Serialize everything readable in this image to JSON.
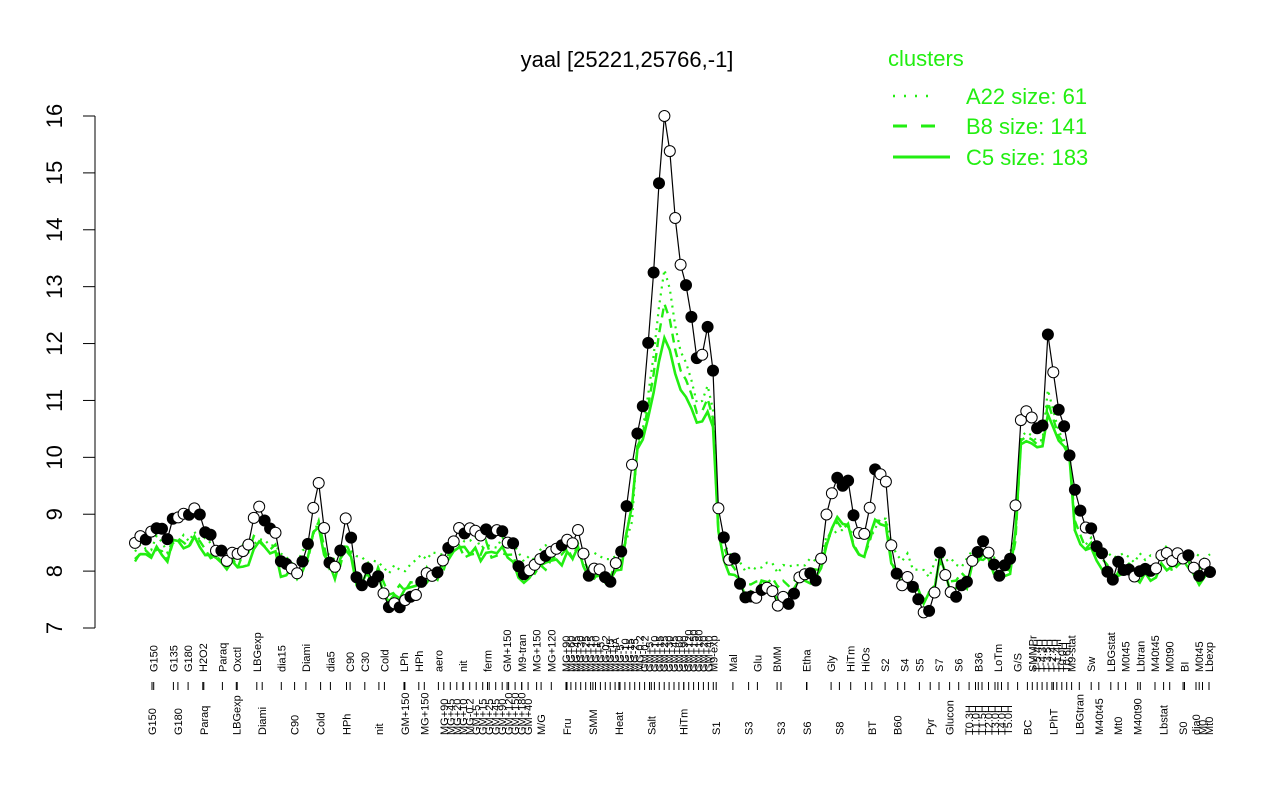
{
  "chart_data": {
    "type": "line",
    "title": "yaal [25221,25766,-1]",
    "xlabel": "",
    "ylabel": "",
    "ylim": [
      7,
      16
    ],
    "yticks": [
      7,
      8,
      9,
      10,
      11,
      12,
      13,
      14,
      15,
      16
    ],
    "n": 200,
    "legend": {
      "title": "clusters",
      "placement": "top-right",
      "color": "#22ee11",
      "entries": [
        {
          "label": "A22 size: 61",
          "style": "dotted"
        },
        {
          "label": "B8 size: 141",
          "style": "dashed"
        },
        {
          "label": "C5 size: 183",
          "style": "solid"
        }
      ]
    },
    "colors": {
      "cluster": "#22ee11",
      "line": "#000000",
      "point_open": "#ffffff",
      "point_filled": "#000000"
    },
    "upper_labels": [
      {
        "i": 3,
        "text": "G150"
      },
      {
        "i": 7,
        "text": "G135"
      },
      {
        "i": 10,
        "text": "G180"
      },
      {
        "i": 13,
        "text": "H2O2"
      },
      {
        "i": 17,
        "text": "Paraq"
      },
      {
        "i": 20,
        "text": "Oxctl"
      },
      {
        "i": 24,
        "text": "LBGexp"
      },
      {
        "i": 29,
        "text": "dia15"
      },
      {
        "i": 34,
        "text": "Diami"
      },
      {
        "i": 39,
        "text": "dia5"
      },
      {
        "i": 43,
        "text": "C90"
      },
      {
        "i": 46,
        "text": "C30"
      },
      {
        "i": 50,
        "text": "Cold"
      },
      {
        "i": 54,
        "text": "LPh"
      },
      {
        "i": 57,
        "text": "HPh"
      },
      {
        "i": 61,
        "text": "aero"
      },
      {
        "i": 66,
        "text": "nit"
      },
      {
        "i": 71,
        "text": "ferm"
      },
      {
        "i": 75,
        "text": "GM+150"
      },
      {
        "i": 78,
        "text": "M9-tran"
      },
      {
        "i": 81,
        "text": "MG+150"
      },
      {
        "i": 84,
        "text": "MG+120"
      },
      {
        "i": 87,
        "text": "MG+90"
      },
      {
        "i": 88,
        "text": "MG+60"
      },
      {
        "i": 89,
        "text": "MG+45"
      },
      {
        "i": 90,
        "text": "MG+30"
      },
      {
        "i": 91,
        "text": "MG+25"
      },
      {
        "i": 92,
        "text": "MG+15"
      },
      {
        "i": 93,
        "text": "MG+10"
      },
      {
        "i": 94,
        "text": "MG+5"
      },
      {
        "i": 95,
        "text": "MG-0.2"
      },
      {
        "i": 96,
        "text": "MG+t5"
      },
      {
        "i": 97,
        "text": "MG+tA"
      },
      {
        "i": 98,
        "text": "MG-5"
      },
      {
        "i": 99,
        "text": "MG-10"
      },
      {
        "i": 100,
        "text": "MG-15"
      },
      {
        "i": 101,
        "text": "MG-25"
      },
      {
        "i": 102,
        "text": "MG-0.2"
      },
      {
        "i": 103,
        "text": "GM-0.2"
      },
      {
        "i": 104,
        "text": "GM+5"
      },
      {
        "i": 105,
        "text": "GM+10"
      },
      {
        "i": 106,
        "text": "GM+15"
      },
      {
        "i": 107,
        "text": "GM+25"
      },
      {
        "i": 108,
        "text": "GM+30"
      },
      {
        "i": 109,
        "text": "GM+45"
      },
      {
        "i": 110,
        "text": "GM+60"
      },
      {
        "i": 111,
        "text": "GM+90"
      },
      {
        "i": 112,
        "text": "GM+120"
      },
      {
        "i": 113,
        "text": "GM+150"
      },
      {
        "i": 114,
        "text": "GM+180"
      },
      {
        "i": 115,
        "text": "GM+20"
      },
      {
        "i": 116,
        "text": "GM+40"
      },
      {
        "i": 117,
        "text": "M9-exp"
      },
      {
        "i": 121,
        "text": "Mal"
      },
      {
        "i": 126,
        "text": "Glu"
      },
      {
        "i": 130,
        "text": "BMM"
      },
      {
        "i": 136,
        "text": "Etha"
      },
      {
        "i": 141,
        "text": "Gly"
      },
      {
        "i": 145,
        "text": "HiTm"
      },
      {
        "i": 148,
        "text": "HiOs"
      },
      {
        "i": 152,
        "text": "S2"
      },
      {
        "i": 156,
        "text": "S4"
      },
      {
        "i": 159,
        "text": "S5"
      },
      {
        "i": 163,
        "text": "S7"
      },
      {
        "i": 167,
        "text": "S6"
      },
      {
        "i": 171,
        "text": "B36"
      },
      {
        "i": 175,
        "text": "LoTm"
      },
      {
        "i": 179,
        "text": "G/S"
      },
      {
        "i": 182,
        "text": "SMMPr"
      },
      {
        "i": 183,
        "text": "T-5.4H"
      },
      {
        "i": 184,
        "text": "T-4.3H"
      },
      {
        "i": 185,
        "text": "T-3.5H"
      },
      {
        "i": 186,
        "text": "T-2.4H"
      },
      {
        "i": 187,
        "text": "T-1.4H"
      },
      {
        "i": 188,
        "text": "T0.0H"
      },
      {
        "i": 189,
        "text": "T0.6H"
      },
      {
        "i": 190,
        "text": "M9-stat"
      },
      {
        "i": 194,
        "text": "Sw"
      },
      {
        "i": 198,
        "text": "LBGstat"
      },
      {
        "i": 201,
        "text": "M0t45"
      },
      {
        "i": 204,
        "text": "Lbtran"
      },
      {
        "i": 207,
        "text": "M40t45"
      },
      {
        "i": 210,
        "text": "M0t90"
      },
      {
        "i": 213,
        "text": "BI"
      },
      {
        "i": 216,
        "text": "M0t45"
      },
      {
        "i": 218,
        "text": "Lbexp"
      }
    ],
    "lower_labels": [
      {
        "i": 2,
        "text": "G150"
      },
      {
        "i": 6,
        "text": "G180"
      },
      {
        "i": 10,
        "text": "Paraq"
      },
      {
        "i": 15,
        "text": "LBGexp"
      },
      {
        "i": 19,
        "text": "Diami"
      },
      {
        "i": 24,
        "text": "C90"
      },
      {
        "i": 28,
        "text": "Cold"
      },
      {
        "i": 32,
        "text": "HPh"
      },
      {
        "i": 37,
        "text": "nit"
      },
      {
        "i": 41,
        "text": "GM+150"
      },
      {
        "i": 44,
        "text": "MG+150"
      },
      {
        "i": 47,
        "text": "MG+90"
      },
      {
        "i": 48,
        "text": "MG+45"
      },
      {
        "i": 49,
        "text": "MG+20"
      },
      {
        "i": 50,
        "text": "MG+10"
      },
      {
        "i": 51,
        "text": "MG-0.2"
      },
      {
        "i": 52,
        "text": "GM+5"
      },
      {
        "i": 53,
        "text": "GM+15"
      },
      {
        "i": 54,
        "text": "GM+25"
      },
      {
        "i": 55,
        "text": "GM+45"
      },
      {
        "i": 56,
        "text": "GM+90"
      },
      {
        "i": 57,
        "text": "GM+120"
      },
      {
        "i": 58,
        "text": "GM+150"
      },
      {
        "i": 59,
        "text": "GM+180"
      },
      {
        "i": 60,
        "text": "GM+40"
      },
      {
        "i": 62,
        "text": "M/G"
      },
      {
        "i": 66,
        "text": "Fru"
      },
      {
        "i": 70,
        "text": "SMM"
      },
      {
        "i": 74,
        "text": "Heat"
      },
      {
        "i": 79,
        "text": "Salt"
      },
      {
        "i": 84,
        "text": "HiTm"
      },
      {
        "i": 89,
        "text": "S1"
      },
      {
        "i": 94,
        "text": "S3"
      },
      {
        "i": 99,
        "text": "S3"
      },
      {
        "i": 103,
        "text": "S6"
      },
      {
        "i": 108,
        "text": "S8"
      },
      {
        "i": 113,
        "text": "BT"
      },
      {
        "i": 117,
        "text": "B60"
      },
      {
        "i": 122,
        "text": "Pyr"
      },
      {
        "i": 125,
        "text": "Glucon"
      },
      {
        "i": 128,
        "text": "T0.3H"
      },
      {
        "i": 129,
        "text": "T1.0H"
      },
      {
        "i": 130,
        "text": "T1.5H"
      },
      {
        "i": 131,
        "text": "T2.0H"
      },
      {
        "i": 132,
        "text": "T3.0H"
      },
      {
        "i": 133,
        "text": "T4.0H"
      },
      {
        "i": 134,
        "text": "T5.0H"
      },
      {
        "i": 137,
        "text": "BC"
      },
      {
        "i": 141,
        "text": "LPhT"
      },
      {
        "i": 145,
        "text": "LBGtran"
      },
      {
        "i": 148,
        "text": "M40t45"
      },
      {
        "i": 151,
        "text": "Mt0"
      },
      {
        "i": 154,
        "text": "M40t90"
      },
      {
        "i": 158,
        "text": "Lbstat"
      },
      {
        "i": 161,
        "text": "S0"
      },
      {
        "i": 163,
        "text": "dia0"
      },
      {
        "i": 164,
        "text": "M0"
      },
      {
        "i": 165,
        "text": "Mt0"
      }
    ]
  }
}
